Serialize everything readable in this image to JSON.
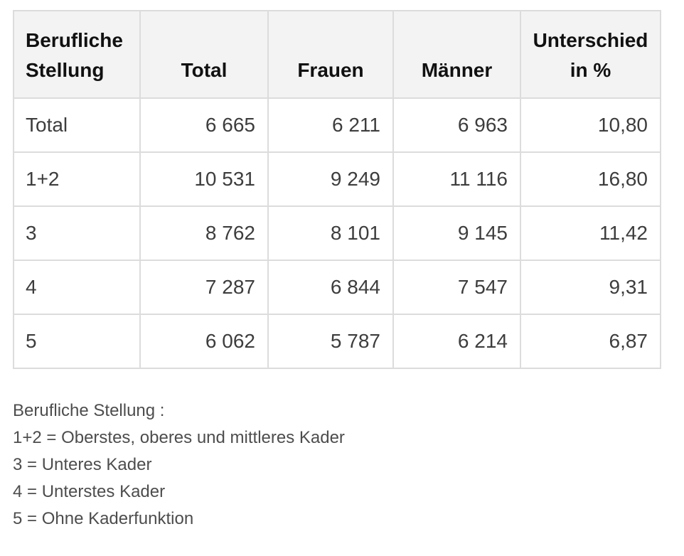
{
  "colors": {
    "page_bg": "#ffffff",
    "header_bg": "#f3f3f3",
    "border": "#dcdcdc",
    "header_text": "#111111",
    "cell_text": "#3d3d3d",
    "legend_text": "#4d4d4d"
  },
  "table": {
    "columns": [
      {
        "label": "Berufliche Stellung"
      },
      {
        "label": "Total"
      },
      {
        "label": "Frauen"
      },
      {
        "label": "Männer"
      },
      {
        "label": "Unterschied in %"
      }
    ],
    "rows": [
      {
        "cells": [
          "Total",
          "6 665",
          "6 211",
          "6 963",
          "10,80"
        ]
      },
      {
        "cells": [
          "1+2",
          "10 531",
          "9 249",
          "11 116",
          "16,80"
        ]
      },
      {
        "cells": [
          "3",
          "8 762",
          "8 101",
          "9 145",
          "11,42"
        ]
      },
      {
        "cells": [
          "4",
          "7 287",
          "6 844",
          "7 547",
          "9,31"
        ]
      },
      {
        "cells": [
          "5",
          "6 062",
          "5 787",
          "6 214",
          "6,87"
        ]
      }
    ]
  },
  "legend": {
    "title": "Berufliche Stellung :",
    "items": [
      "1+2 = Oberstes, oberes und mittleres Kader",
      "3 = Unteres Kader",
      "4 = Unterstes Kader",
      "5 = Ohne Kaderfunktion"
    ]
  },
  "chart_data": {
    "type": "table",
    "title": "Berufliche Stellung",
    "columns": [
      "Berufliche Stellung",
      "Total",
      "Frauen",
      "Männer",
      "Unterschied in %"
    ],
    "rows": [
      {
        "berufliche_stellung": "Total",
        "total": 6665,
        "frauen": 6211,
        "maenner": 6963,
        "unterschied_in_prozent": 10.8
      },
      {
        "berufliche_stellung": "1+2",
        "total": 10531,
        "frauen": 9249,
        "maenner": 11116,
        "unterschied_in_prozent": 16.8
      },
      {
        "berufliche_stellung": "3",
        "total": 8762,
        "frauen": 8101,
        "maenner": 9145,
        "unterschied_in_prozent": 11.42
      },
      {
        "berufliche_stellung": "4",
        "total": 7287,
        "frauen": 6844,
        "maenner": 7547,
        "unterschied_in_prozent": 9.31
      },
      {
        "berufliche_stellung": "5",
        "total": 6062,
        "frauen": 5787,
        "maenner": 6214,
        "unterschied_in_prozent": 6.87
      }
    ],
    "footnotes": [
      "Berufliche Stellung :",
      "1+2 = Oberstes, oberes und mittleres Kader",
      "3 = Unteres Kader",
      "4 = Unterstes Kader",
      "5 = Ohne Kaderfunktion"
    ]
  }
}
